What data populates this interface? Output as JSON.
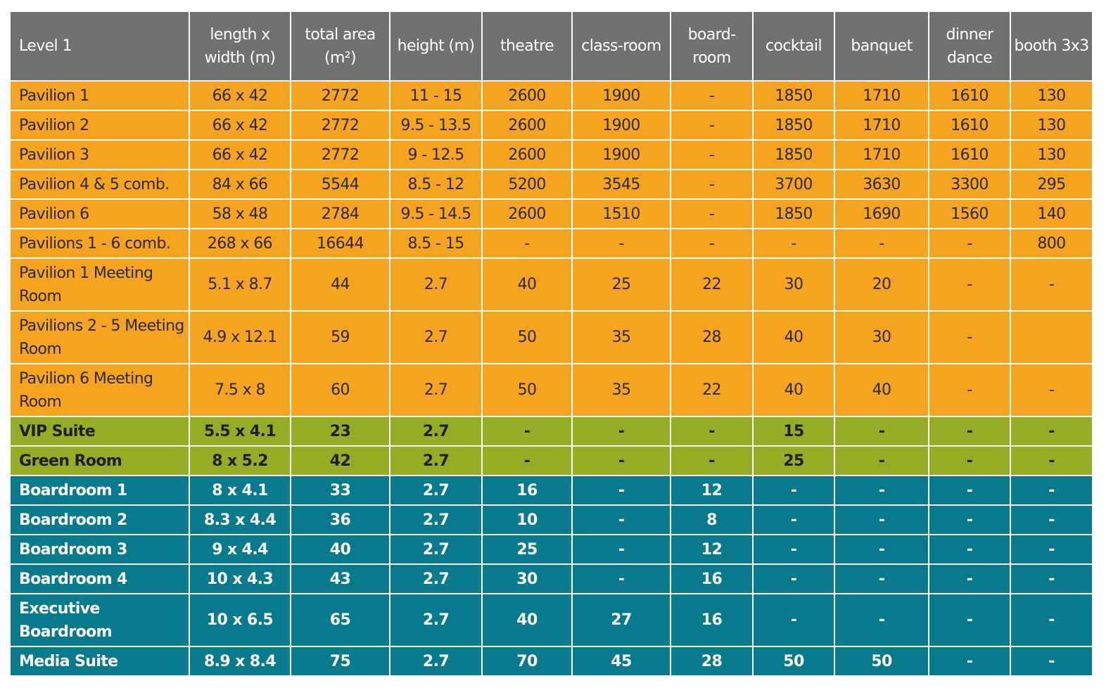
{
  "colors": {
    "header": "#717171",
    "pavilion": "#f6a31f",
    "green": "#95ad24",
    "teal": "#077a8d"
  },
  "headers": [
    "Level 1",
    "length x width (m)",
    "total area (m²)",
    "height (m)",
    "theatre",
    "class-room",
    "board-room",
    "cocktail",
    "banquet",
    "dinner dance",
    "booth 3x3"
  ],
  "rows": [
    {
      "group": "orange",
      "cells": [
        "Pavilion 1",
        "66 x 42",
        "2772",
        "11 - 15",
        "2600",
        "1900",
        "-",
        "1850",
        "1710",
        "1610",
        "130"
      ]
    },
    {
      "group": "orange",
      "cells": [
        "Pavilion 2",
        "66 x 42",
        "2772",
        "9.5 - 13.5",
        "2600",
        "1900",
        "-",
        "1850",
        "1710",
        "1610",
        "130"
      ]
    },
    {
      "group": "orange",
      "cells": [
        "Pavilion 3",
        "66 x 42",
        "2772",
        "9 - 12.5",
        "2600",
        "1900",
        "-",
        "1850",
        "1710",
        "1610",
        "130"
      ]
    },
    {
      "group": "orange",
      "cells": [
        "Pavilion 4 & 5 comb.",
        "84 x 66",
        "5544",
        "8.5 - 12",
        "5200",
        "3545",
        "-",
        "3700",
        "3630",
        "3300",
        "295"
      ]
    },
    {
      "group": "orange",
      "cells": [
        "Pavilion 6",
        "58 x 48",
        "2784",
        "9.5 - 14.5",
        "2600",
        "1510",
        "-",
        "1850",
        "1690",
        "1560",
        "140"
      ]
    },
    {
      "group": "orange",
      "cells": [
        "Pavilions 1 - 6 comb.",
        "268 x 66",
        "16644",
        "8.5 - 15",
        "-",
        "-",
        "-",
        "-",
        "-",
        "-",
        "800"
      ]
    },
    {
      "group": "orange",
      "cells": [
        "Pavilion 1 Meeting Room",
        "5.1 x 8.7",
        "44",
        "2.7",
        "40",
        "25",
        "22",
        "30",
        "20",
        "-",
        "-"
      ]
    },
    {
      "group": "orange",
      "cells": [
        "Pavilions 2 - 5 Meeting Room",
        "4.9 x 12.1",
        "59",
        "2.7",
        "50",
        "35",
        "28",
        "40",
        "30",
        "-",
        ""
      ]
    },
    {
      "group": "orange",
      "cells": [
        "Pavilion 6 Meeting Room",
        "7.5 x 8",
        "60",
        "2.7",
        "50",
        "35",
        "22",
        "40",
        "40",
        "-",
        "-"
      ]
    },
    {
      "group": "green",
      "cells": [
        "VIP Suite",
        "5.5 x 4.1",
        "23",
        "2.7",
        "-",
        "-",
        "-",
        "15",
        "-",
        "-",
        "-"
      ]
    },
    {
      "group": "green",
      "cells": [
        "Green Room",
        "8 x 5.2",
        "42",
        "2.7",
        "-",
        "-",
        "-",
        "25",
        "-",
        "-",
        "-"
      ]
    },
    {
      "group": "teal",
      "cells": [
        "Boardroom 1",
        "8 x 4.1",
        "33",
        "2.7",
        "16",
        "-",
        "12",
        "-",
        "-",
        "-",
        "-"
      ]
    },
    {
      "group": "teal",
      "cells": [
        "Boardroom 2",
        "8.3 x 4.4",
        "36",
        "2.7",
        "10",
        "-",
        "8",
        "-",
        "-",
        "-",
        "-"
      ]
    },
    {
      "group": "teal",
      "cells": [
        "Boardroom 3",
        "9 x 4.4",
        "40",
        "2.7",
        "25",
        "-",
        "12",
        "-",
        "-",
        "-",
        "-"
      ]
    },
    {
      "group": "teal",
      "cells": [
        "Boardroom 4",
        "10 x 4.3",
        "43",
        "2.7",
        "30",
        "-",
        "16",
        "-",
        "-",
        "-",
        "-"
      ]
    },
    {
      "group": "teal",
      "cells": [
        "Executive Boardroom",
        "10 x 6.5",
        "65",
        "2.7",
        "40",
        "27",
        "16",
        "-",
        "-",
        "-",
        "-"
      ]
    },
    {
      "group": "teal",
      "cells": [
        "Media Suite",
        "8.9 x 8.4",
        "75",
        "2.7",
        "70",
        "45",
        "28",
        "50",
        "50",
        "-",
        "-"
      ]
    }
  ]
}
